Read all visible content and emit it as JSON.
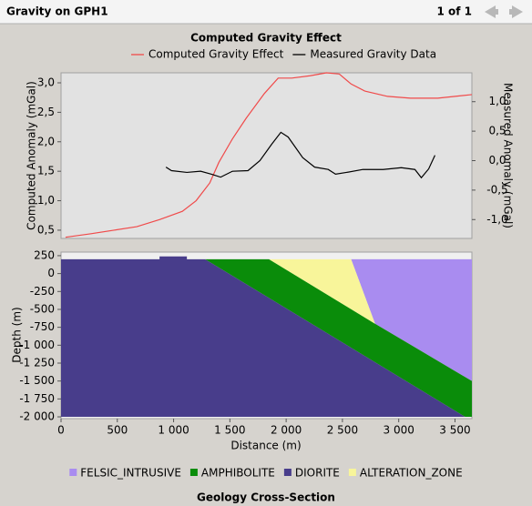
{
  "header": {
    "title": "Gravity on GPH1",
    "page": "1 of 1"
  },
  "chart_data": [
    {
      "type": "line",
      "title": "Computed Gravity Effect",
      "ylabel": "Computed Anomaly (mGal)",
      "y2label": "Measured Anomaly (mGal)",
      "xlim": [
        0,
        3650
      ],
      "ylim": [
        0.36,
        3.17
      ],
      "yticks": [
        {
          "value": 0.5,
          "label": "0,5"
        },
        {
          "value": 1.0,
          "label": "1,0"
        },
        {
          "value": 1.5,
          "label": "1,5"
        },
        {
          "value": 2.0,
          "label": "2,0"
        },
        {
          "value": 2.5,
          "label": "2,5"
        },
        {
          "value": 3.0,
          "label": "3,0"
        }
      ],
      "y2lim": [
        -1.32,
        1.49
      ],
      "y2ticks": [
        {
          "value": -1.0,
          "label": "-1,0"
        },
        {
          "value": -0.5,
          "label": "-0,5"
        },
        {
          "value": 0,
          "label": "0,0"
        },
        {
          "value": 0.5,
          "label": "0,5"
        },
        {
          "value": 1.0,
          "label": "1,0"
        }
      ],
      "series": [
        {
          "name": "Computed Gravity Effect",
          "color": "#f04a4a",
          "x": [
            40,
            267,
            470,
            673,
            875,
            1078,
            1200,
            1321,
            1402,
            1523,
            1645,
            1807,
            1929,
            2050,
            2212,
            2358,
            2472,
            2577,
            2699,
            2901,
            3104,
            3347,
            3650
          ],
          "values": [
            0.38,
            0.44,
            0.5,
            0.56,
            0.68,
            0.82,
            1.0,
            1.3,
            1.65,
            2.05,
            2.4,
            2.82,
            3.08,
            3.08,
            3.12,
            3.17,
            3.15,
            2.98,
            2.86,
            2.77,
            2.74,
            2.74,
            2.8
          ]
        },
        {
          "name": "Measured Gravity Data",
          "color": "#000000",
          "axis": "y2",
          "x": [
            932,
            981,
            1118,
            1240,
            1337,
            1418,
            1523,
            1661,
            1767,
            1872,
            1953,
            2018,
            2147,
            2253,
            2374,
            2439,
            2536,
            2682,
            2861,
            3023,
            3144,
            3201,
            3266,
            3322
          ],
          "values": [
            -0.11,
            -0.17,
            -0.2,
            -0.18,
            -0.23,
            -0.28,
            -0.18,
            -0.17,
            0.0,
            0.28,
            0.48,
            0.4,
            0.05,
            -0.11,
            -0.15,
            -0.23,
            -0.2,
            -0.15,
            -0.15,
            -0.12,
            -0.15,
            -0.29,
            -0.14,
            0.09
          ]
        }
      ]
    },
    {
      "type": "polygon",
      "title": "Geology Cross-Section",
      "xlabel": "Distance (m)",
      "ylabel": "Depth (m)",
      "xlim": [
        0,
        3650
      ],
      "xticks": [
        0,
        500,
        {
          "value": 1000,
          "label": "1 000"
        },
        {
          "value": 1500,
          "label": "1 500"
        },
        {
          "value": 2000,
          "label": "2 000"
        },
        {
          "value": 2500,
          "label": "2 500"
        },
        {
          "value": 3000,
          "label": "3 000"
        },
        {
          "value": 3500,
          "label": "3 500"
        }
      ],
      "ylim": [
        -2025,
        300
      ],
      "yticks": [
        250,
        0,
        -250,
        -500,
        -750,
        {
          "value": -1000,
          "label": "-1 000"
        },
        {
          "value": -1250,
          "label": "-1 250"
        },
        {
          "value": -1500,
          "label": "-1 500"
        },
        {
          "value": -1750,
          "label": "-1 750"
        },
        {
          "value": -2000,
          "label": "-2 000"
        }
      ],
      "series": [
        {
          "name": "FELSIC_INTRUSIVE",
          "color": "#a98cf0",
          "x": [
            2577,
            3650,
            3650,
            2790
          ],
          "values": [
            200,
            200,
            -1500,
            -700
          ]
        },
        {
          "name": "AMPHIBOLITE",
          "color": "#0a8c0a",
          "x": [
            1280,
            1848,
            2790,
            3650,
            3650,
            3590
          ],
          "values": [
            200,
            200,
            -700,
            -1500,
            -2000,
            -2000
          ]
        },
        {
          "name": "DIORITE",
          "color": "#483d8b",
          "x": [
            0,
            875,
            875,
            1118,
            1118,
            1280,
            3590,
            0
          ],
          "values": [
            200,
            200,
            240,
            240,
            200,
            200,
            -2000,
            -2000
          ]
        },
        {
          "name": "ALTERATION_ZONE",
          "color": "#f8f59a",
          "x": [
            1848,
            2577,
            2790
          ],
          "values": [
            200,
            200,
            -700
          ]
        }
      ]
    }
  ]
}
